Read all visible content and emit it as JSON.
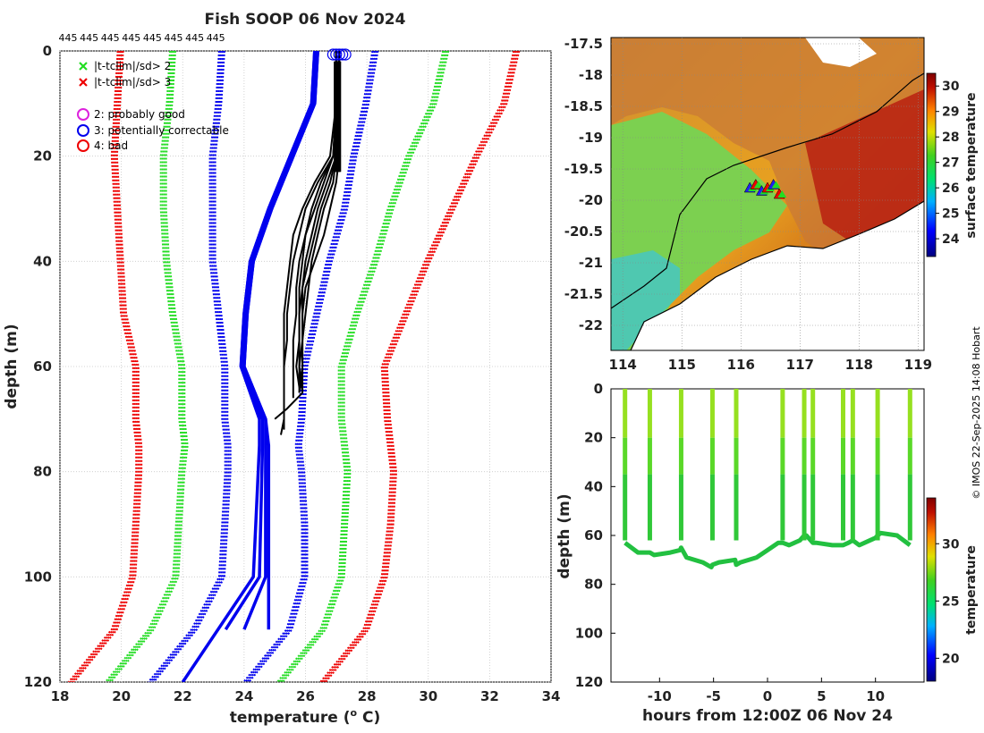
{
  "title": "Fish SOOP 06 Nov 2024",
  "watermark": "© IMOS 22-Sep-2025 14:08 Hobart",
  "chart_data": [
    {
      "type": "line",
      "name": "profile",
      "xlabel": "temperature (",
      "xlabel_sup": "o",
      "xlabel_end": " C)",
      "ylabel": "depth (m)",
      "xlim": [
        18,
        34
      ],
      "ylim": [
        120,
        0
      ],
      "xticks": [
        "18",
        "20",
        "22",
        "24",
        "26",
        "28",
        "30",
        "32",
        "34"
      ],
      "yticks": [
        "0",
        "20",
        "40",
        "60",
        "80",
        "100",
        "120"
      ],
      "top_labels": [
        "445",
        "445",
        "445",
        "445",
        "445",
        "445",
        "445",
        "445"
      ],
      "legend": [
        {
          "marker": "x",
          "color": "#22dd22",
          "label": "|t-tclim|/sd> 2"
        },
        {
          "marker": "x",
          "color": "#ee0000",
          "label": "|t-tclim|/sd> 3"
        },
        {
          "marker": "o",
          "color": "#dd22dd",
          "label": "2: probably good"
        },
        {
          "marker": "o",
          "color": "#0000ee",
          "label": "3: potentially correctable"
        },
        {
          "marker": "o",
          "color": "#ee0000",
          "label": "4: bad"
        }
      ],
      "climatology": {
        "depth": [
          0,
          10,
          20,
          30,
          40,
          50,
          60,
          70,
          75,
          80,
          90,
          100,
          110,
          120
        ],
        "series": [
          {
            "name": "clim-3sd-low",
            "color": "#ee0000",
            "values": [
              20.0,
              19.9,
              19.8,
              19.9,
              20.0,
              20.1,
              20.5,
              20.5,
              20.6,
              20.6,
              20.5,
              20.4,
              19.8,
              18.4
            ]
          },
          {
            "name": "clim-2sd-low",
            "color": "#22dd22",
            "values": [
              21.7,
              21.6,
              21.4,
              21.4,
              21.5,
              21.7,
              22.0,
              22.0,
              22.1,
              22.0,
              21.9,
              21.8,
              21.0,
              19.6
            ]
          },
          {
            "name": "clim-1sd-low",
            "color": "#0000ee",
            "values": [
              23.3,
              23.2,
              23.0,
              23.0,
              23.0,
              23.2,
              23.4,
              23.4,
              23.5,
              23.5,
              23.4,
              23.3,
              22.4,
              21.0
            ]
          },
          {
            "name": "clim-1sd-high",
            "color": "#0000ee",
            "values": [
              28.3,
              28.0,
              27.6,
              27.3,
              26.8,
              26.4,
              26.0,
              25.9,
              25.8,
              25.9,
              26.0,
              26.0,
              25.5,
              24.1
            ]
          },
          {
            "name": "clim-2sd-high",
            "color": "#22dd22",
            "values": [
              30.6,
              30.2,
              29.4,
              28.8,
              28.3,
              27.7,
              27.2,
              27.2,
              27.3,
              27.4,
              27.3,
              27.2,
              26.6,
              25.2
            ]
          },
          {
            "name": "clim-3sd-high",
            "color": "#ee0000",
            "values": [
              32.9,
              32.5,
              31.6,
              30.8,
              30.0,
              29.3,
              28.6,
              28.7,
              28.8,
              28.9,
              28.8,
              28.6,
              28.0,
              26.6
            ]
          }
        ]
      },
      "mean_profiles": {
        "color": "#0000ee",
        "series": [
          {
            "depth": [
              0,
              10,
              20,
              30,
              40,
              50,
              60,
              70,
              75,
              100,
              110
            ],
            "values": [
              26.4,
              26.3,
              25.6,
              24.9,
              24.3,
              24.1,
              24.0,
              24.7,
              24.7,
              24.7,
              24.0
            ]
          },
          {
            "depth": [
              0,
              10,
              20,
              30,
              40,
              50,
              60,
              70,
              75,
              100,
              110
            ],
            "values": [
              26.3,
              26.2,
              25.5,
              24.8,
              24.2,
              24.0,
              23.9,
              24.6,
              24.6,
              24.5,
              23.4
            ]
          },
          {
            "depth": [
              0,
              10,
              20,
              30,
              40,
              50,
              60,
              70,
              75,
              100,
              120
            ],
            "values": [
              26.3,
              26.2,
              25.5,
              24.8,
              24.2,
              24.0,
              23.9,
              24.5,
              24.5,
              24.3,
              22.0
            ]
          },
          {
            "depth": [
              0,
              10,
              20,
              30,
              40,
              50,
              60,
              70,
              75,
              100,
              110
            ],
            "values": [
              26.4,
              26.3,
              25.6,
              24.9,
              24.3,
              24.1,
              24.0,
              24.7,
              24.8,
              24.8,
              24.8
            ]
          }
        ]
      },
      "profiles": {
        "color": "#000000",
        "series": [
          {
            "depth": [
              0,
              10,
              20,
              25,
              30,
              35,
              40,
              45,
              50,
              55,
              60,
              65
            ],
            "values": [
              27.0,
              27.1,
              27.1,
              27.0,
              26.8,
              26.6,
              26.3,
              26.0,
              25.9,
              25.9,
              25.8,
              25.8
            ]
          },
          {
            "depth": [
              0,
              10,
              20,
              25,
              30,
              35,
              40,
              45,
              50,
              55,
              60,
              66
            ],
            "values": [
              27.0,
              27.0,
              26.9,
              26.6,
              26.3,
              26.0,
              25.8,
              25.7,
              25.7,
              25.6,
              25.6,
              25.6
            ]
          },
          {
            "depth": [
              0,
              10,
              20,
              25,
              30,
              35,
              40,
              45,
              50,
              55,
              60,
              64
            ],
            "values": [
              27.1,
              27.1,
              27.0,
              26.8,
              26.5,
              26.3,
              26.1,
              25.9,
              25.8,
              25.8,
              25.7,
              25.8
            ]
          },
          {
            "depth": [
              0,
              10,
              20,
              25,
              30,
              35,
              40,
              45,
              50,
              55,
              60,
              70,
              73
            ],
            "values": [
              27.0,
              27.0,
              26.8,
              26.3,
              25.9,
              25.6,
              25.5,
              25.4,
              25.3,
              25.3,
              25.3,
              25.3,
              25.2
            ]
          },
          {
            "depth": [
              0,
              10,
              20,
              25,
              30,
              35,
              40,
              45,
              50,
              55,
              60,
              65,
              68,
              70
            ],
            "values": [
              27.1,
              27.1,
              26.9,
              26.5,
              26.2,
              26.0,
              25.9,
              25.8,
              25.8,
              25.8,
              25.8,
              25.9,
              25.4,
              25.0
            ]
          },
          {
            "depth": [
              0,
              10,
              20,
              25,
              30,
              35,
              40,
              45,
              50,
              55,
              60,
              65
            ],
            "values": [
              27.0,
              27.1,
              27.0,
              26.7,
              26.4,
              26.2,
              26.0,
              25.9,
              25.9,
              25.9,
              25.9,
              25.8
            ]
          },
          {
            "depth": [
              0,
              10,
              20,
              25,
              30,
              35,
              40,
              45,
              50,
              55,
              60,
              65
            ],
            "values": [
              27.1,
              27.1,
              27.0,
              26.9,
              26.6,
              26.4,
              26.2,
              26.1,
              26.0,
              25.9,
              25.9,
              25.9
            ]
          },
          {
            "depth": [
              0,
              10,
              20,
              25,
              30,
              35,
              40,
              45,
              50,
              55,
              60,
              72
            ],
            "values": [
              27.0,
              27.0,
              26.9,
              26.4,
              26.0,
              25.8,
              25.6,
              25.5,
              25.4,
              25.4,
              25.3,
              25.3
            ]
          }
        ]
      },
      "flag_circles": {
        "color": "#0000ee",
        "depth": 0,
        "values": [
          26.9,
          27.0,
          27.1,
          27.2,
          27.3
        ]
      }
    },
    {
      "type": "heatmap",
      "name": "map",
      "xlim": [
        113.8,
        119.1
      ],
      "ylim": [
        -22.4,
        -17.4
      ],
      "xticks": [
        "114",
        "115",
        "116",
        "117",
        "118",
        "119"
      ],
      "yticks": [
        "-17.5",
        "-18",
        "-18.5",
        "-19",
        "-19.5",
        "-20",
        "-20.5",
        "-21",
        "-21.5",
        "-22"
      ],
      "colorbar": {
        "label": "surface temperature",
        "range": [
          23.3,
          30.5
        ],
        "ticks": [
          "24",
          "25",
          "26",
          "27",
          "28",
          "29",
          "30"
        ]
      },
      "track": {
        "lon": [
          116.15,
          116.25,
          116.35,
          116.45,
          116.55,
          116.65
        ],
        "lat": [
          -19.8,
          -19.75,
          -19.85,
          -19.8,
          -19.75,
          -19.9
        ]
      }
    },
    {
      "type": "scatter",
      "name": "section",
      "xlabel": "hours from 12:00Z 06 Nov 24",
      "ylabel": "depth (m)",
      "xlim": [
        -14.5,
        14.5
      ],
      "ylim": [
        120,
        0
      ],
      "xticks": [
        "-10",
        "-5",
        "0",
        "5",
        "10"
      ],
      "yticks": [
        "0",
        "20",
        "40",
        "60",
        "80",
        "100",
        "120"
      ],
      "colorbar": {
        "label": "temperature",
        "range": [
          18,
          34
        ],
        "ticks": [
          "20",
          "25",
          "30"
        ]
      },
      "casts": [
        -13.2,
        -10.9,
        -8.0,
        -5.1,
        -2.9,
        1.4,
        3.4,
        4.2,
        7.0,
        7.9,
        10.2,
        13.2
      ],
      "bottom": {
        "hours": [
          -13.2,
          -12.0,
          -11.0,
          -10.9,
          -10.5,
          -9.0,
          -8.1,
          -8.0,
          -7.5,
          -6.0,
          -5.2,
          -5.1,
          -4.5,
          -3.0,
          -2.9,
          -2.5,
          -1.0,
          0.0,
          1.0,
          1.4,
          2.0,
          3.0,
          3.4,
          3.6,
          4.2,
          4.5,
          6.0,
          7.0,
          7.5,
          7.9,
          8.5,
          10.0,
          10.2,
          10.5,
          12.0,
          13.2
        ],
        "depth": [
          63,
          67,
          67,
          67,
          68,
          67,
          66,
          65,
          69,
          71,
          73,
          72,
          71,
          70,
          72,
          71,
          69,
          66,
          63,
          63,
          64,
          62,
          60,
          60,
          63,
          63,
          64,
          64,
          63,
          62,
          64,
          61,
          60,
          59,
          60,
          64
        ]
      }
    }
  ]
}
